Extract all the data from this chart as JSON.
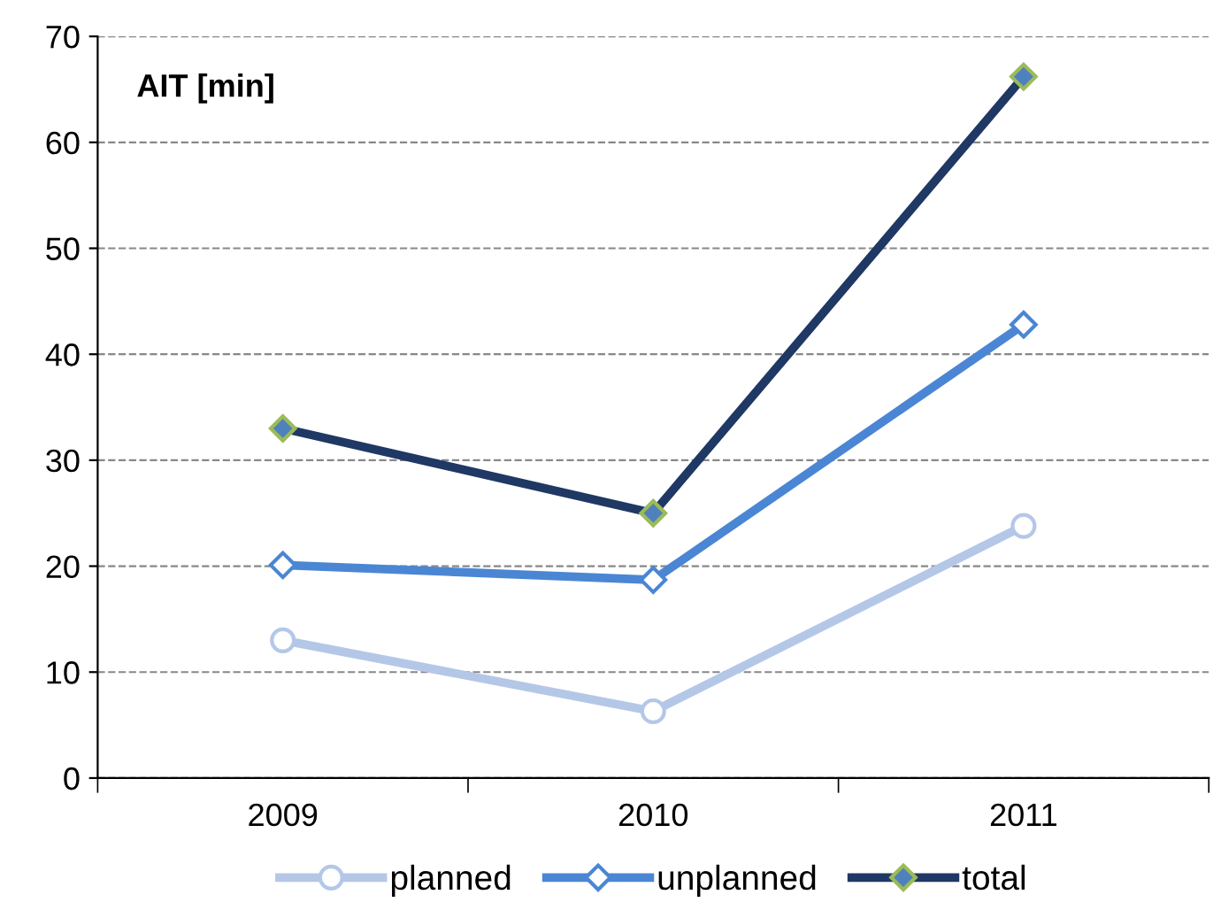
{
  "chart_data": {
    "type": "line",
    "ylabel": "AIT [min]",
    "categories": [
      "2009",
      "2010",
      "2011"
    ],
    "series": [
      {
        "name": "planned",
        "color": "#b4c7e7",
        "values": [
          13,
          6.3,
          23.8
        ],
        "marker": "circle"
      },
      {
        "name": "unplanned",
        "color": "#4a86d4",
        "values": [
          20.1,
          18.7,
          42.8
        ],
        "marker": "diamond"
      },
      {
        "name": "total",
        "color": "#1f3864",
        "values": [
          33,
          25,
          66.2
        ],
        "marker": "diamond"
      }
    ],
    "ylim": [
      0,
      70
    ],
    "yticks": [
      0,
      10,
      20,
      30,
      40,
      50,
      60,
      70
    ],
    "grid": "y",
    "legend": "bottom",
    "line_style": "solid"
  }
}
